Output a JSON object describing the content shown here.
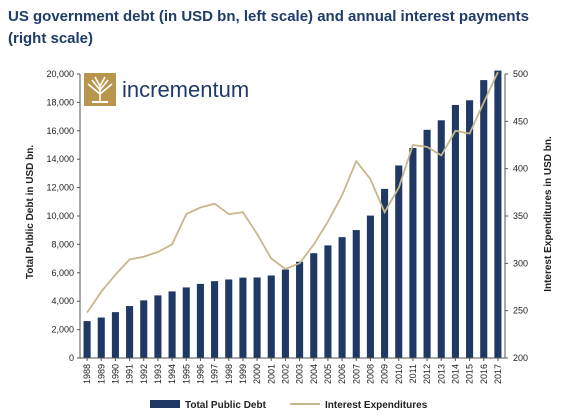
{
  "title_line1": "US government debt (in USD bn, left scale) and annual interest payments",
  "title_line2": "(right scale)",
  "logo_text": "incrementum",
  "colors": {
    "bar": "#1f3864",
    "line": "#c8b68c",
    "logo_gold": "#b8964e",
    "title": "#1f3b6a"
  },
  "chart_data": {
    "type": "bar",
    "categories": [
      "1988",
      "1989",
      "1990",
      "1991",
      "1992",
      "1993",
      "1994",
      "1995",
      "1996",
      "1997",
      "1998",
      "1999",
      "2000",
      "2001",
      "2002",
      "2003",
      "2004",
      "2005",
      "2006",
      "2007",
      "2008",
      "2009",
      "2010",
      "2011",
      "2012",
      "2013",
      "2014",
      "2015",
      "2016",
      "2017"
    ],
    "series": [
      {
        "name": "Total Public Debt",
        "type": "bar",
        "axis": "left",
        "values": [
          2600,
          2850,
          3230,
          3660,
          4060,
          4410,
          4690,
          4970,
          5220,
          5410,
          5530,
          5660,
          5670,
          5810,
          6230,
          6780,
          7380,
          7930,
          8510,
          9010,
          10030,
          11910,
          13560,
          14790,
          16070,
          16740,
          17820,
          18150,
          19570,
          20240
        ]
      },
      {
        "name": "Interest Expenditures",
        "type": "line",
        "axis": "right",
        "values": [
          248,
          270,
          288,
          304,
          307,
          312,
          320,
          352,
          359,
          363,
          352,
          354,
          331,
          305,
          294,
          300,
          320,
          344,
          372,
          408,
          389,
          354,
          380,
          425,
          423,
          414,
          440,
          437,
          470,
          502
        ]
      }
    ],
    "y_left": {
      "label": "Total Public Debt in USD bn.",
      "min": 0,
      "max": 20000,
      "ticks": [
        "0",
        "2,000",
        "4,000",
        "6,000",
        "8,000",
        "10,000",
        "12,000",
        "14,000",
        "16,000",
        "18,000",
        "20,000"
      ]
    },
    "y_right": {
      "label": "Interest Expenditures in USD bn.",
      "min": 200,
      "max": 500,
      "ticks": [
        "200",
        "250",
        "300",
        "350",
        "400",
        "450",
        "500"
      ]
    },
    "legend": {
      "placement": "bottom",
      "entries": [
        "Total Public Debt",
        "Interest Expenditures"
      ]
    },
    "grid": false
  }
}
